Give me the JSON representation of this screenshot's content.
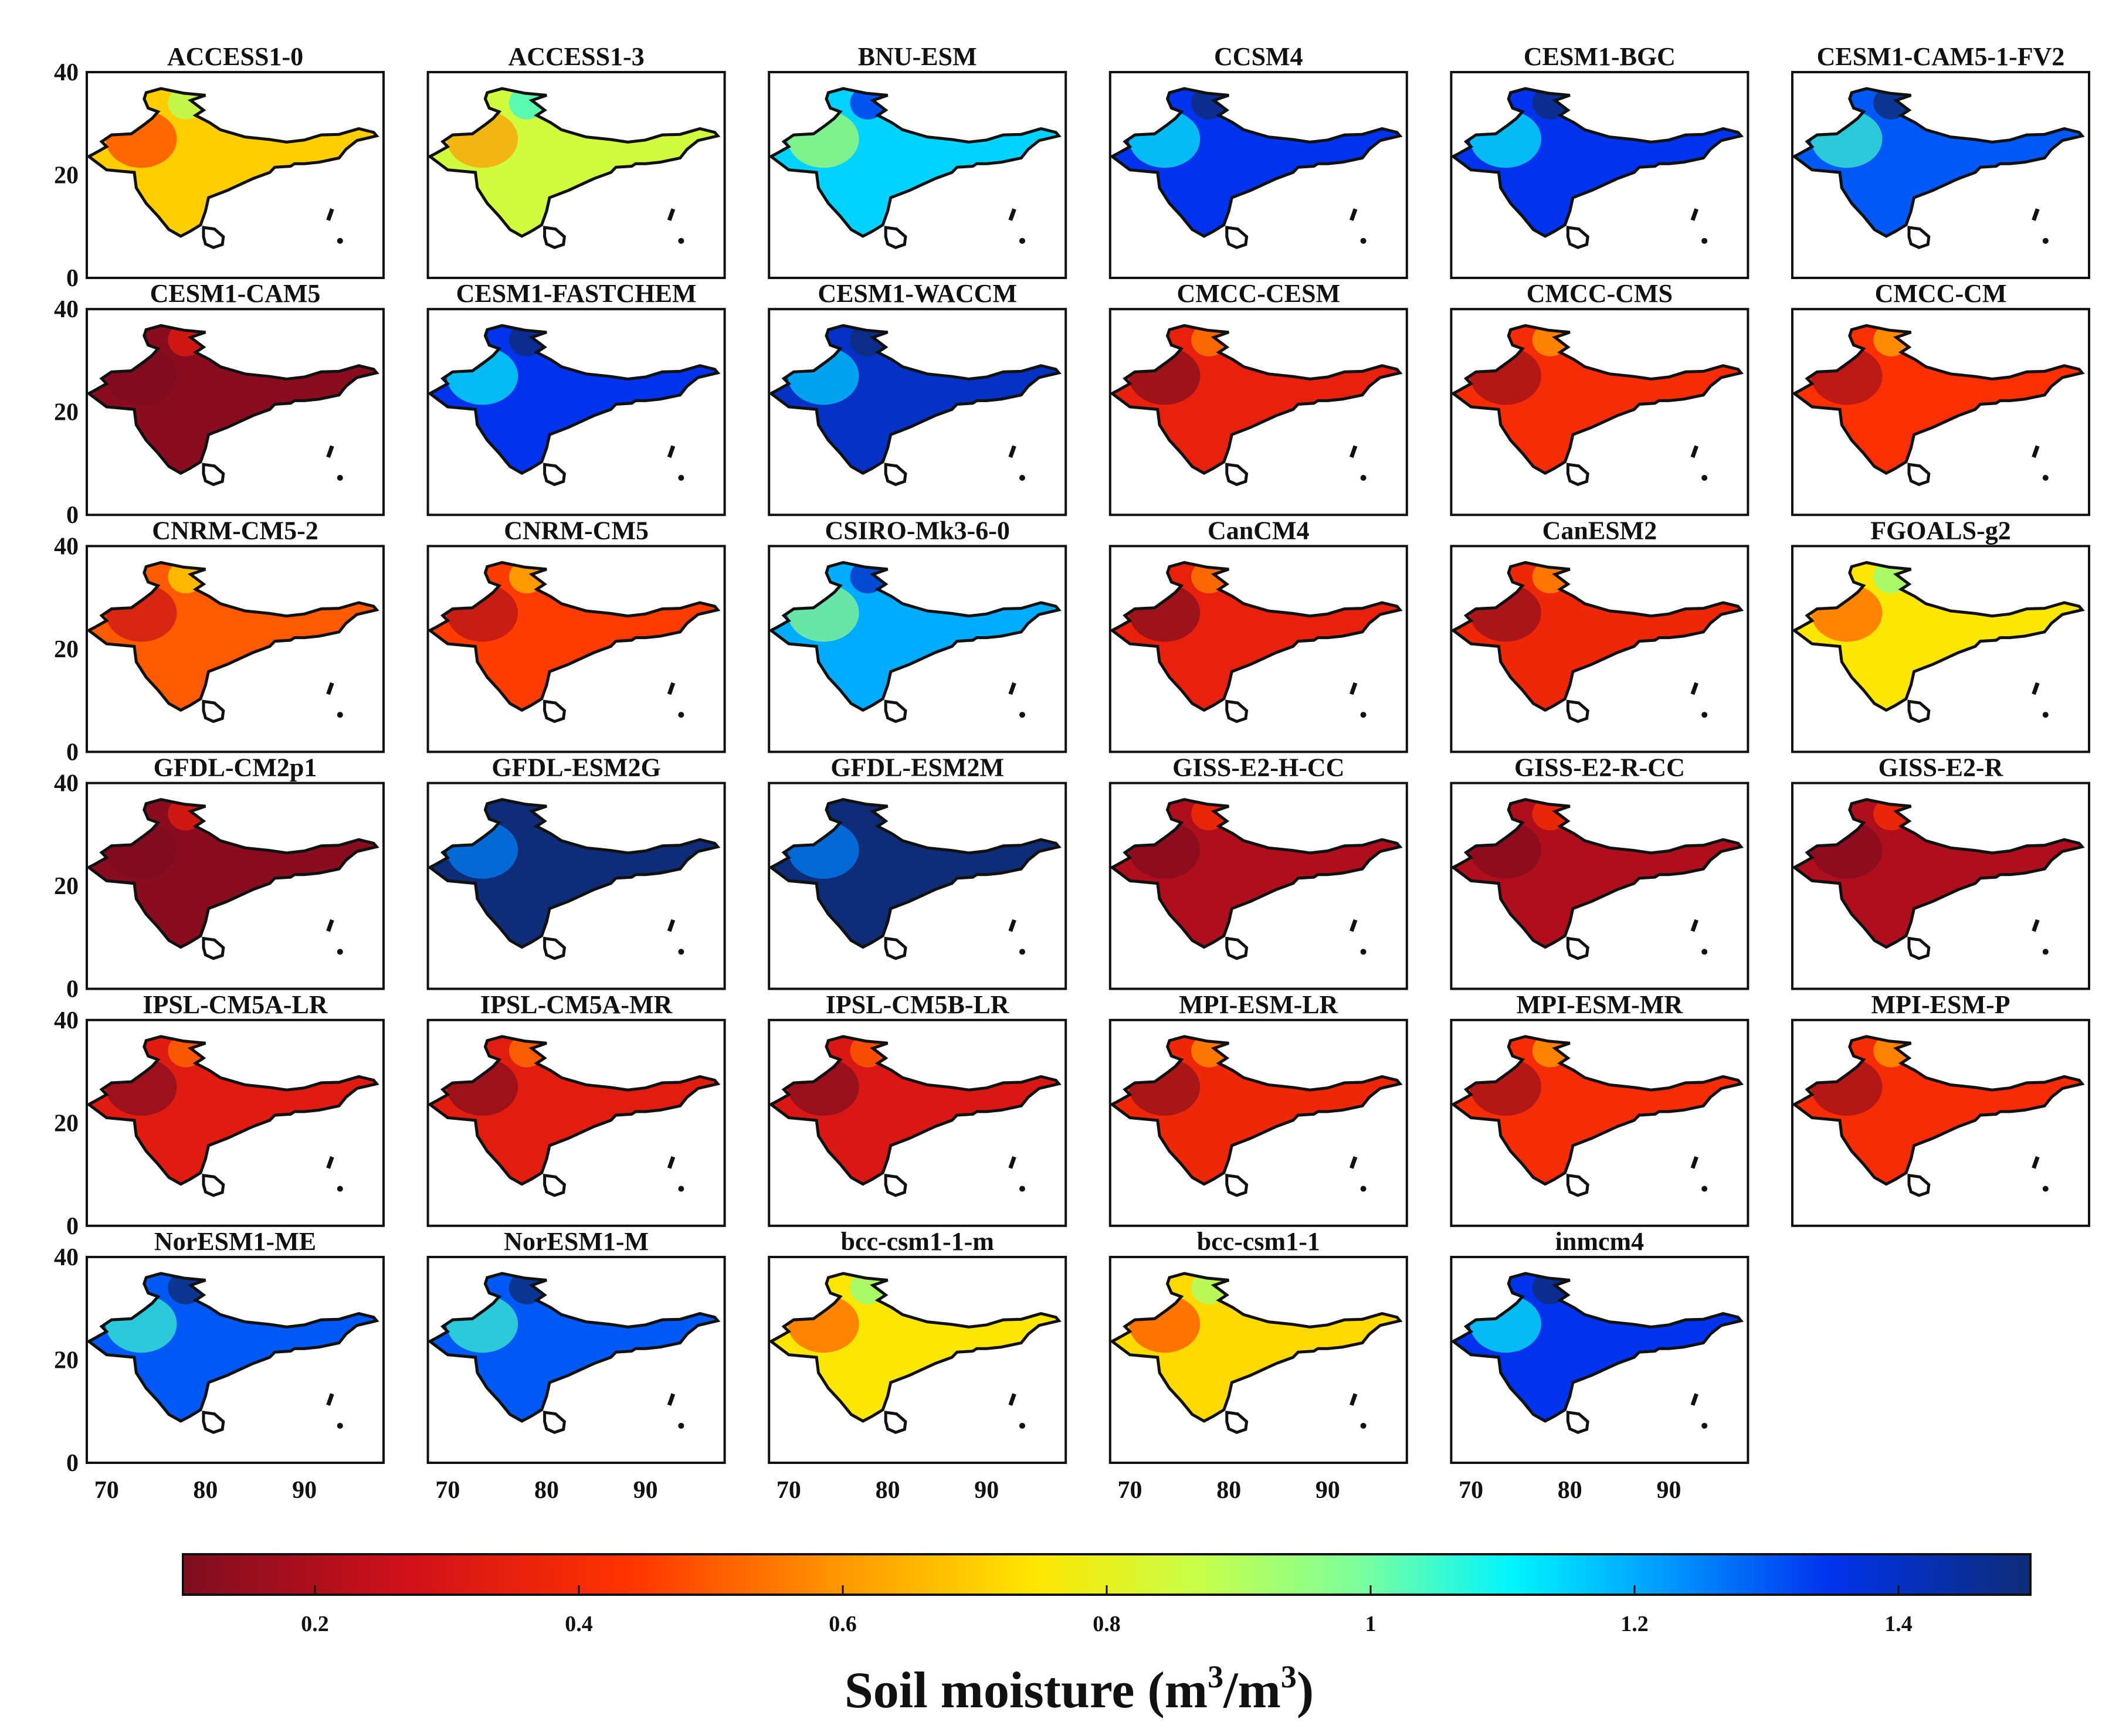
{
  "chart_data": {
    "type": "heatmap",
    "figure_kind": "small-multiple spatial maps (India region)",
    "panel_titles": [
      "ACCESS1-0",
      "ACCESS1-3",
      "BNU-ESM",
      "CCSM4",
      "CESM1-BGC",
      "CESM1-CAM5-1-FV2",
      "CESM1-CAM5",
      "CESM1-FASTCHEM",
      "CESM1-WACCM",
      "CMCC-CESM",
      "CMCC-CMS",
      "CMCC-CM",
      "CNRM-CM5-2",
      "CNRM-CM5",
      "CSIRO-Mk3-6-0",
      "CanCM4",
      "CanESM2",
      "FGOALS-g2",
      "GFDL-CM2p1",
      "GFDL-ESM2G",
      "GFDL-ESM2M",
      "GISS-E2-H-CC",
      "GISS-E2-R-CC",
      "GISS-E2-R",
      "IPSL-CM5A-LR",
      "IPSL-CM5A-MR",
      "IPSL-CM5B-LR",
      "MPI-ESM-LR",
      "MPI-ESM-MR",
      "MPI-ESM-P",
      "NorESM1-ME",
      "NorESM1-M",
      "bcc-csm1-1-m",
      "bcc-csm1-1",
      "inmcm4"
    ],
    "typical_soil_moisture": [
      0.7,
      0.85,
      1.15,
      1.35,
      1.35,
      1.3,
      0.12,
      1.35,
      1.4,
      0.35,
      0.4,
      0.42,
      0.5,
      0.45,
      1.2,
      0.35,
      0.38,
      0.75,
      0.12,
      1.5,
      1.5,
      0.2,
      0.2,
      0.2,
      0.32,
      0.33,
      0.3,
      0.38,
      0.4,
      0.4,
      1.3,
      1.3,
      0.75,
      0.72,
      1.35
    ],
    "x_ticks": [
      "70",
      "80",
      "90"
    ],
    "y_ticks": [
      "0",
      "20",
      "40"
    ],
    "xlim": [
      68,
      98
    ],
    "ylim": [
      0,
      40
    ],
    "colorbar": {
      "ticks": [
        "0.2",
        "0.4",
        "0.6",
        "0.8",
        "1",
        "1.2",
        "1.4"
      ],
      "tick_values": [
        0.2,
        0.4,
        0.6,
        0.8,
        1.0,
        1.2,
        1.4
      ],
      "range": [
        0.1,
        1.5
      ],
      "colormap": "jet-reversed (red to blue)",
      "title_prefix": "Soil moisture (m",
      "title_sup1": "3",
      "title_mid": "/m",
      "title_sup2": "3",
      "title_suffix": ")"
    }
  }
}
